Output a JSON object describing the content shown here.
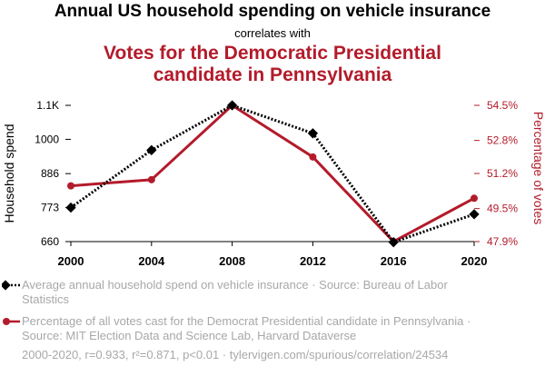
{
  "header": {
    "title": "Annual US household spending on vehicle insurance",
    "connector": "correlates with",
    "title2": "Votes for the Democratic Presidential candidate in Pennsylvania"
  },
  "chart_data": {
    "type": "line",
    "x": [
      2000,
      2004,
      2008,
      2012,
      2016,
      2020
    ],
    "x_ticks": [
      "2000",
      "2004",
      "2008",
      "2012",
      "2016",
      "2020"
    ],
    "series": [
      {
        "name": "Average annual household spend on vehicle insurance · Source: Bureau of Labor Statistics",
        "axis": "left",
        "color": "#000000",
        "marker": "diamond",
        "line_style": "dotted",
        "values": [
          773,
          964,
          1113,
          1020,
          658,
          751
        ]
      },
      {
        "name": "Percentage of all votes cast for the Democrat Presidential candidate in Pennsylvania · Source: MIT Election Data and Science Lab, Harvard Dataverse",
        "axis": "right",
        "color": "#b31b2b",
        "marker": "circle",
        "line_style": "solid",
        "values": [
          50.6,
          50.9,
          54.5,
          52.0,
          47.9,
          50.0
        ]
      }
    ],
    "y_left": {
      "label": "Household spend",
      "ticks": [
        "1.1K",
        "1000",
        "886",
        "773",
        "660"
      ],
      "tick_values": [
        1113,
        1000,
        886,
        773,
        660
      ],
      "range": [
        660,
        1113
      ]
    },
    "y_right": {
      "label": "Percentage of votes",
      "ticks": [
        "54.5%",
        "52.8%",
        "51.2%",
        "49.5%",
        "47.9%"
      ],
      "tick_values": [
        54.5,
        52.8,
        51.2,
        49.5,
        47.9
      ],
      "range": [
        47.9,
        54.5
      ],
      "color": "#b31b2b"
    },
    "legend_position": "bottom"
  },
  "footer": "2000-2020, r=0.933, r²=0.871, p<0.01 · tylervigen.com/spurious/correlation/24534"
}
